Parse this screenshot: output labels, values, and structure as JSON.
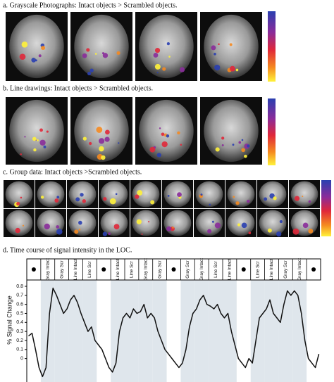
{
  "panels": [
    {
      "title": "a. Grayscale Photographs: Intact objects > Scrambled objects."
    },
    {
      "title": "b. Line drawings: Intact objects > Scrambled objects."
    },
    {
      "title": "c. Group data: Intact objects >Scrambled objects."
    }
  ],
  "chart_data": {
    "type": "line",
    "title": "d. Time course of signal intensity in the LOC.",
    "ylabel": "% Signal Change",
    "conditions": [
      null,
      "Gray Intact",
      "Gray Scr",
      "Line Intact",
      "Line Scr",
      null,
      "Line Intact",
      "Line Scr",
      "Gray Intact",
      "Gray Scr",
      null,
      "Gray Scr",
      "Gray Intact",
      "Line Scr",
      "Line Intact",
      null,
      "Line Scr",
      "Line Intact",
      "Gray Scr",
      "Gray Intact",
      null
    ],
    "values": [
      0.25,
      0.28,
      0.1,
      -0.1,
      -0.2,
      -0.1,
      0.5,
      0.78,
      0.7,
      0.6,
      0.5,
      0.55,
      0.65,
      0.7,
      0.62,
      0.5,
      0.4,
      0.3,
      0.35,
      0.2,
      0.15,
      0.1,
      0.0,
      -0.1,
      -0.15,
      -0.05,
      0.3,
      0.45,
      0.5,
      0.45,
      0.55,
      0.5,
      0.52,
      0.6,
      0.45,
      0.5,
      0.45,
      0.3,
      0.2,
      0.1,
      0.05,
      0.0,
      -0.05,
      -0.1,
      -0.05,
      0.1,
      0.35,
      0.5,
      0.55,
      0.65,
      0.7,
      0.6,
      0.58,
      0.55,
      0.6,
      0.5,
      0.45,
      0.5,
      0.3,
      0.15,
      0.0,
      -0.05,
      -0.1,
      0.0,
      -0.05,
      0.2,
      0.45,
      0.5,
      0.55,
      0.65,
      0.5,
      0.45,
      0.4,
      0.6,
      0.75,
      0.7,
      0.75,
      0.7,
      0.5,
      0.2,
      0.0,
      -0.05,
      -0.1,
      0.05
    ],
    "color": "#111111",
    "ylim": [
      -0.26,
      0.87
    ],
    "yticks": [
      0,
      0.1,
      0.2,
      0.3,
      0.4,
      0.5,
      0.6,
      0.7,
      0.8
    ]
  }
}
